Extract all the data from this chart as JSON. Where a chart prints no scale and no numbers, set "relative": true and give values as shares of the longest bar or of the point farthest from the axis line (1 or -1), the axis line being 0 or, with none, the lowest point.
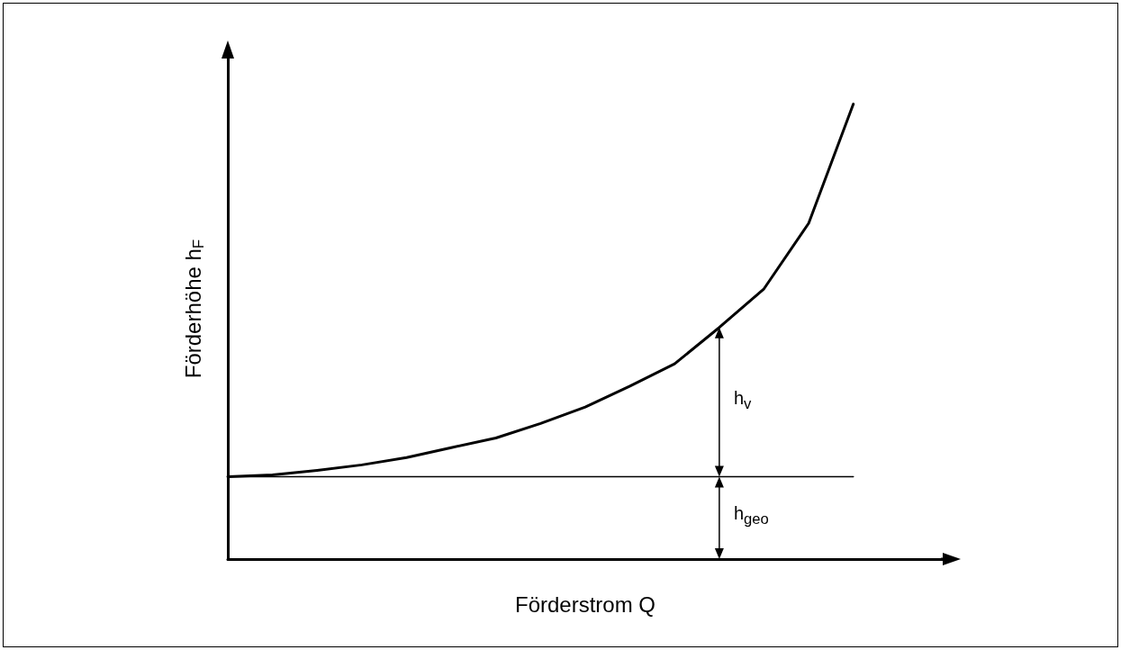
{
  "chart_data": {
    "type": "line",
    "relative": true,
    "xlabel": "Förderstrom Q",
    "ylabel": "Förderhöhe h$_{F}$",
    "categories": [
      null,
      null,
      null,
      null,
      null,
      null,
      null,
      null,
      null,
      null,
      null,
      null,
      null,
      null,
      null,
      null,
      null
    ],
    "series": [
      {
        "color": "#000000",
        "values": [
          0.181,
          0.185,
          0.195,
          0.207,
          0.223,
          0.245,
          0.266,
          0.298,
          0.334,
          0.38,
          0.429,
          0.509,
          0.594,
          0.738,
          1.0,
          null,
          null
        ]
      },
      {
        "color": "#000000",
        "values": [
          0.181,
          0.181,
          0.181,
          0.181,
          0.181,
          0.181,
          0.181,
          0.181,
          0.181,
          0.181,
          0.181,
          0.181,
          0.181,
          0.181,
          0.181,
          null,
          null
        ]
      }
    ],
    "annotations": [
      "h$_{v}$",
      "h$_{geo}$"
    ],
    "marker": "none",
    "line_style": "solid",
    "grid": false
  }
}
